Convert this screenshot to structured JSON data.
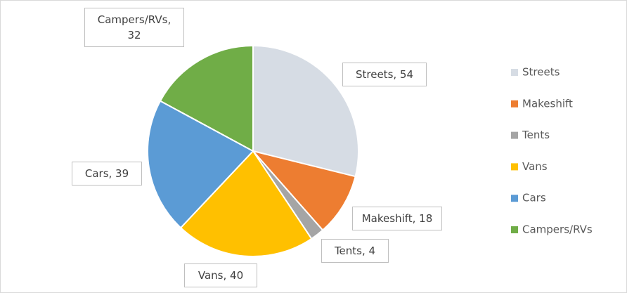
{
  "chart_data": {
    "type": "pie",
    "categories": [
      "Streets",
      "Makeshift",
      "Tents",
      "Vans",
      "Cars",
      "Campers/RVs"
    ],
    "values": [
      54,
      18,
      4,
      40,
      39,
      32
    ],
    "value_labels": [
      "Streets, 54",
      "Makeshift, 18",
      "Tents, 4",
      "Vans, 40",
      "Cars, 39",
      "Campers/RVs, 32"
    ],
    "colors": [
      "#d6dce4",
      "#ed7d31",
      "#a5a5a5",
      "#ffc000",
      "#5b9bd5",
      "#70ad47"
    ],
    "legend": "right"
  }
}
